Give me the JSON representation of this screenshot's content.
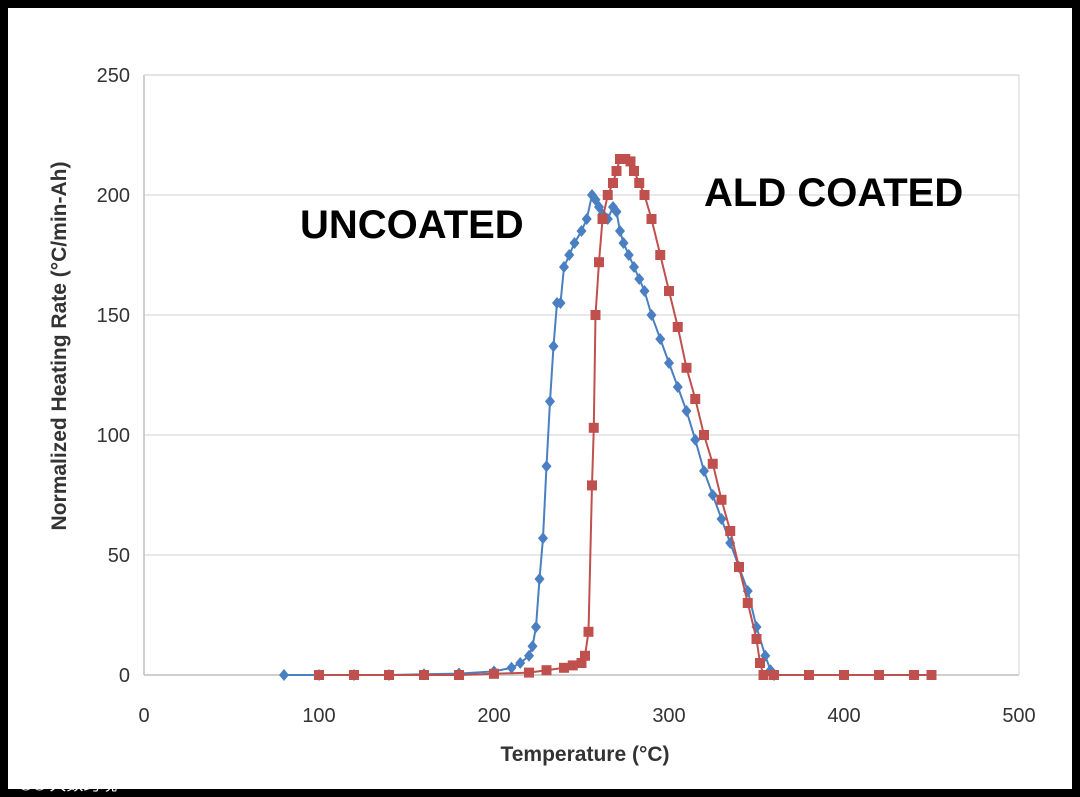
{
  "chart_data": {
    "type": "scatter",
    "title": "",
    "xlabel": "Temperature (°C)",
    "ylabel": "Normalized Heating Rate (°C/min-Ah)",
    "xlim": [
      0,
      500
    ],
    "ylim": [
      0,
      250
    ],
    "xticks": [
      0,
      100,
      200,
      300,
      400,
      500
    ],
    "yticks": [
      0,
      50,
      100,
      150,
      200,
      250
    ],
    "grid": "horizontal",
    "annotations": [
      {
        "text": "UNCOATED",
        "series": "uncoated"
      },
      {
        "text": "ALD COATED",
        "series": "coated"
      }
    ],
    "series": [
      {
        "key": "uncoated",
        "color": "#4a7fc1",
        "marker": "diamond",
        "x": [
          80,
          100,
          120,
          140,
          160,
          180,
          200,
          210,
          215,
          220,
          222,
          224,
          226,
          228,
          230,
          232,
          234,
          236,
          238,
          240,
          243,
          246,
          250,
          253,
          256,
          258,
          260,
          262,
          265,
          268,
          270,
          272,
          274,
          277,
          280,
          283,
          286,
          290,
          295,
          300,
          305,
          310,
          315,
          320,
          325,
          330,
          335,
          340,
          345,
          350,
          355,
          358,
          360
        ],
        "y": [
          0,
          0,
          0,
          0,
          0.3,
          0.6,
          1.5,
          3,
          5,
          8,
          12,
          20,
          40,
          57,
          87,
          114,
          137,
          155,
          155,
          170,
          175,
          180,
          185,
          190,
          200,
          198,
          195,
          192,
          190,
          195,
          193,
          185,
          180,
          175,
          170,
          165,
          160,
          150,
          140,
          130,
          120,
          110,
          98,
          85,
          75,
          65,
          55,
          45,
          35,
          20,
          8,
          2,
          0
        ]
      },
      {
        "key": "coated",
        "color": "#c0504d",
        "marker": "square",
        "x": [
          100,
          120,
          140,
          160,
          180,
          200,
          220,
          230,
          240,
          245,
          250,
          252,
          254,
          256,
          257,
          258,
          260,
          262,
          265,
          268,
          270,
          272,
          275,
          278,
          280,
          283,
          286,
          290,
          295,
          300,
          305,
          310,
          315,
          320,
          325,
          330,
          335,
          340,
          345,
          350,
          352,
          354,
          360,
          380,
          400,
          420,
          440,
          450
        ],
        "y": [
          0,
          0,
          0,
          0,
          0,
          0.5,
          1,
          2,
          3,
          4,
          5,
          8,
          18,
          79,
          103,
          150,
          172,
          190,
          200,
          205,
          210,
          215,
          215,
          214,
          210,
          205,
          200,
          190,
          175,
          160,
          145,
          128,
          115,
          100,
          88,
          73,
          60,
          45,
          30,
          15,
          5,
          0,
          0,
          0,
          0,
          0,
          0,
          0
        ]
      }
    ]
  },
  "watermark": {
    "text": "大数跨境"
  }
}
